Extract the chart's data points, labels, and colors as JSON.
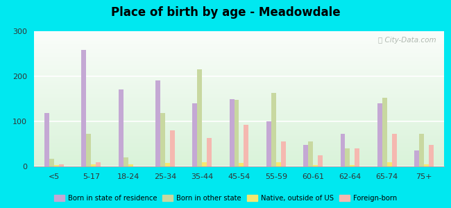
{
  "title": "Place of birth by age - Meadowdale",
  "categories": [
    "<5",
    "5-17",
    "18-24",
    "25-34",
    "35-44",
    "45-54",
    "55-59",
    "60-61",
    "62-64",
    "65-74",
    "75+"
  ],
  "series": {
    "Born in state of residence": [
      118,
      258,
      170,
      190,
      140,
      150,
      100,
      48,
      72,
      140,
      35
    ],
    "Born in other state": [
      17,
      72,
      20,
      118,
      215,
      148,
      163,
      55,
      40,
      152,
      73
    ],
    "Native, outside of US": [
      3,
      5,
      5,
      8,
      10,
      8,
      10,
      3,
      3,
      10,
      5
    ],
    "Foreign-born": [
      5,
      10,
      0,
      80,
      63,
      93,
      55,
      25,
      40,
      72,
      47
    ]
  },
  "colors": {
    "Born in state of residence": "#c4a8d4",
    "Born in other state": "#c8d8a0",
    "Native, outside of US": "#f5e870",
    "Foreign-born": "#f5b8b0"
  },
  "ylim": [
    0,
    300
  ],
  "yticks": [
    0,
    100,
    200,
    300
  ],
  "outer_bg": "#00e8f0",
  "bar_width": 0.13,
  "offsets": [
    -1.5,
    -0.5,
    0.5,
    1.5
  ]
}
